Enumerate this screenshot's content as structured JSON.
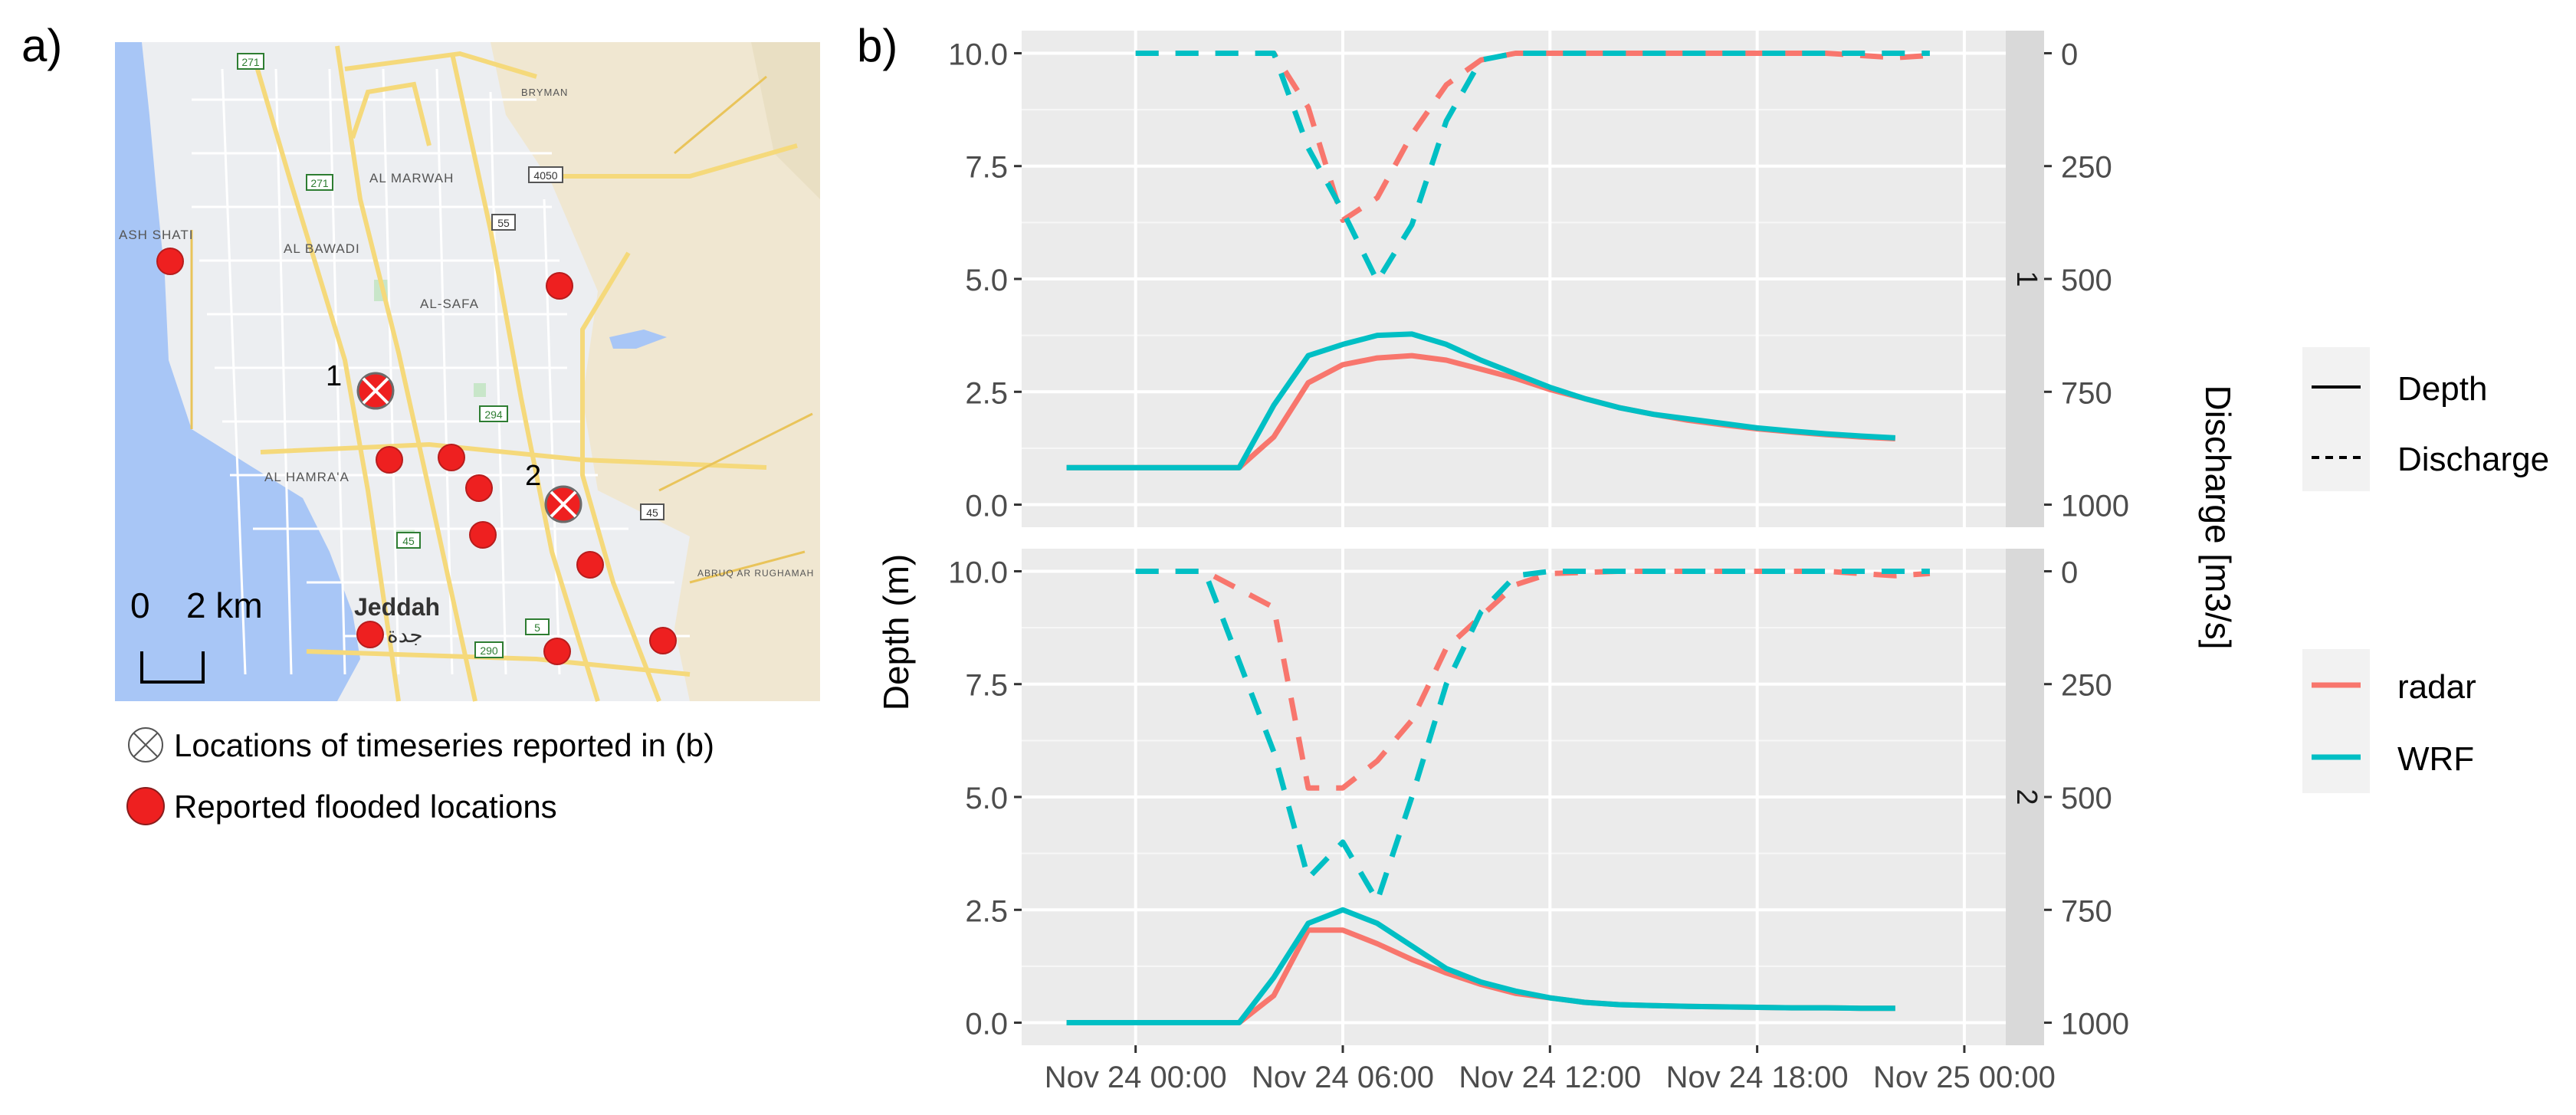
{
  "panel_a": {
    "label": "a)",
    "scale_bar": {
      "start": "0",
      "end": "2 km"
    },
    "city": {
      "latin": "Jeddah",
      "arabic": "جدة"
    },
    "place_names": [
      "ASH SHATI",
      "AL BAWADI",
      "AL MARWAH",
      "AL-SAFA",
      "AL HAMRA'A",
      "BRYMAN",
      "ABRUQ AR RUGHAMAH"
    ],
    "road_numbers": [
      "271",
      "271",
      "4050",
      "55",
      "294",
      "45",
      "45",
      "290",
      "5"
    ],
    "timeseries_locations": [
      {
        "label": "1"
      },
      {
        "label": "2"
      }
    ],
    "flooded_location_count": 12,
    "legend": {
      "timeseries": "Locations of timeseries reported in (b)",
      "flooded": "Reported flooded locations"
    },
    "colors": {
      "water": "#a8c6f6",
      "land": "#eceef1",
      "desert": "#f0e7d1",
      "road": "#f5d97b",
      "flood": "#ee2020"
    }
  },
  "chart_data": {
    "label": "b)",
    "type": "line",
    "x_unit": "hours since Nov 24 00:00",
    "xlim": [
      -3.3,
      25.2
    ],
    "x_ticks": [
      0,
      6,
      12,
      18,
      24
    ],
    "x_tick_labels": [
      "Nov 24 00:00",
      "Nov 24 06:00",
      "Nov 24 12:00",
      "Nov 24 18:00",
      "Nov 25 00:00"
    ],
    "ylabel": "Depth (m)",
    "ylim": [
      -0.5,
      10.5
    ],
    "y_ticks": [
      0,
      2.5,
      5,
      7.5,
      10
    ],
    "y_tick_labels": [
      "0.0",
      "2.5",
      "5.0",
      "7.5",
      "10.0"
    ],
    "y2label": "Discharge [m3/s]",
    "y2_ticks": [
      0,
      250,
      500,
      750,
      1000
    ],
    "y2_tick_labels": [
      "0",
      "250",
      "500",
      "750",
      "1000"
    ],
    "y2_note": "discharge axis is inverted: depth = 10 - discharge/100",
    "grid": true,
    "legend_linetype": {
      "title": "",
      "entries": [
        {
          "label": "Depth",
          "dash": "solid"
        },
        {
          "label": "Discharge",
          "dash": "dashed"
        }
      ]
    },
    "legend_color": {
      "title": "",
      "entries": [
        {
          "label": "radar",
          "color": "#f8766d"
        },
        {
          "label": "WRF",
          "color": "#00bfc4"
        }
      ]
    },
    "panels": [
      {
        "strip": "1",
        "series": [
          {
            "name": "radar",
            "variable": "Depth",
            "color": "#f8766d",
            "dash": "solid",
            "x": [
              -2,
              3,
              4,
              5,
              6,
              7,
              8,
              9,
              10,
              11,
              12,
              13,
              14,
              15,
              16,
              17,
              18,
              19,
              20,
              21,
              22
            ],
            "y": [
              0.82,
              0.82,
              1.5,
              2.7,
              3.1,
              3.25,
              3.3,
              3.2,
              3.0,
              2.8,
              2.55,
              2.35,
              2.15,
              2.0,
              1.87,
              1.77,
              1.68,
              1.61,
              1.55,
              1.5,
              1.46
            ]
          },
          {
            "name": "WRF",
            "variable": "Depth",
            "color": "#00bfc4",
            "dash": "solid",
            "x": [
              -2,
              3,
              4,
              5,
              6,
              7,
              8,
              9,
              10,
              11,
              12,
              13,
              14,
              15,
              16,
              17,
              18,
              19,
              20,
              21,
              22
            ],
            "y": [
              0.82,
              0.82,
              2.2,
              3.3,
              3.55,
              3.75,
              3.78,
              3.55,
              3.2,
              2.9,
              2.6,
              2.35,
              2.15,
              2.0,
              1.9,
              1.8,
              1.7,
              1.63,
              1.57,
              1.52,
              1.48
            ]
          },
          {
            "name": "radar",
            "variable": "Discharge",
            "color": "#f8766d",
            "dash": "dashed",
            "x": [
              0,
              2,
              4,
              5,
              6,
              7,
              8,
              9,
              10,
              11,
              12,
              14,
              16,
              18,
              20,
              22,
              23
            ],
            "y": [
              0,
              0,
              0,
              120,
              370,
              320,
              180,
              70,
              15,
              0,
              0,
              0,
              0,
              0,
              0,
              10,
              5
            ]
          },
          {
            "name": "WRF",
            "variable": "Discharge",
            "color": "#00bfc4",
            "dash": "dashed",
            "x": [
              0,
              2,
              4,
              5,
              6,
              7,
              8,
              9,
              10,
              11,
              12,
              14,
              16,
              18,
              20,
              22,
              23
            ],
            "y": [
              0,
              0,
              0,
              210,
              350,
              505,
              380,
              150,
              15,
              0,
              0,
              0,
              0,
              0,
              0,
              0,
              0
            ]
          }
        ]
      },
      {
        "strip": "2",
        "series": [
          {
            "name": "radar",
            "variable": "Depth",
            "color": "#f8766d",
            "dash": "solid",
            "x": [
              -2,
              3,
              4,
              5,
              6,
              7,
              8,
              9,
              10,
              11,
              12,
              13,
              14,
              15,
              16,
              17,
              18,
              19,
              20,
              21,
              22
            ],
            "y": [
              0,
              0,
              0.6,
              2.05,
              2.05,
              1.75,
              1.4,
              1.1,
              0.85,
              0.65,
              0.55,
              0.45,
              0.4,
              0.38,
              0.36,
              0.35,
              0.34,
              0.33,
              0.33,
              0.32,
              0.32
            ]
          },
          {
            "name": "WRF",
            "variable": "Depth",
            "color": "#00bfc4",
            "dash": "solid",
            "x": [
              -2,
              3,
              4,
              5,
              6,
              7,
              8,
              9,
              10,
              11,
              12,
              13,
              14,
              15,
              16,
              17,
              18,
              19,
              20,
              21,
              22
            ],
            "y": [
              0,
              0,
              1.0,
              2.2,
              2.5,
              2.2,
              1.7,
              1.2,
              0.9,
              0.7,
              0.55,
              0.45,
              0.4,
              0.38,
              0.36,
              0.35,
              0.34,
              0.33,
              0.33,
              0.32,
              0.32
            ]
          },
          {
            "name": "radar",
            "variable": "Discharge",
            "color": "#f8766d",
            "dash": "dashed",
            "x": [
              0,
              2,
              4,
              5,
              6,
              7,
              8,
              9,
              10,
              11,
              12,
              14,
              16,
              18,
              20,
              22,
              23
            ],
            "y": [
              0,
              0,
              80,
              480,
              480,
              420,
              330,
              170,
              100,
              30,
              5,
              0,
              0,
              0,
              0,
              10,
              5
            ]
          },
          {
            "name": "WRF",
            "variable": "Discharge",
            "color": "#00bfc4",
            "dash": "dashed",
            "x": [
              0,
              2,
              4,
              5,
              6,
              7,
              8,
              9,
              10,
              11,
              12,
              14,
              16,
              18,
              20,
              22,
              23
            ],
            "y": [
              0,
              0,
              400,
              680,
              600,
              730,
              500,
              250,
              90,
              10,
              0,
              0,
              0,
              0,
              0,
              0,
              0
            ]
          }
        ]
      }
    ]
  }
}
